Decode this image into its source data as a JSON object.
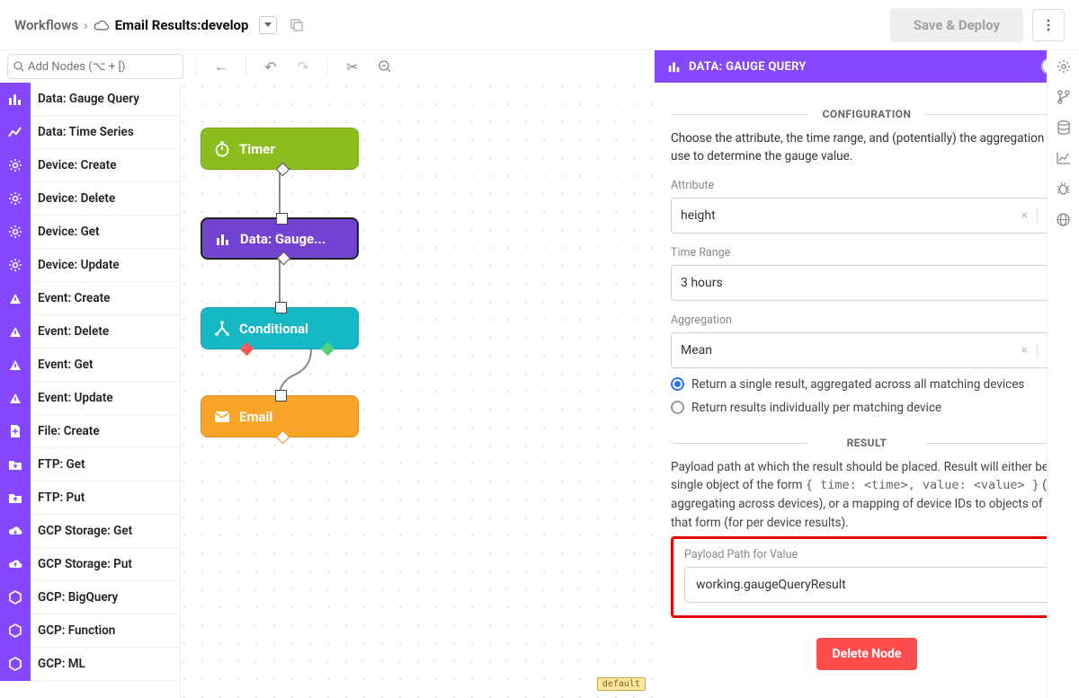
{
  "header": {
    "breadcrumb_root": "Workflows",
    "cloud_label": "Email Results:",
    "branch": "develop",
    "save_deploy": "Save & Deploy"
  },
  "toolbar": {
    "add_nodes_placeholder": "Add Nodes (⌥ + [)"
  },
  "palette": {
    "items": [
      {
        "label": "Data: Gauge Query",
        "icon": "bars"
      },
      {
        "label": "Data: Time Series",
        "icon": "line"
      },
      {
        "label": "Device: Create",
        "icon": "gear"
      },
      {
        "label": "Device: Delete",
        "icon": "gear"
      },
      {
        "label": "Device: Get",
        "icon": "gear"
      },
      {
        "label": "Device: Update",
        "icon": "gear"
      },
      {
        "label": "Event: Create",
        "icon": "peak"
      },
      {
        "label": "Event: Delete",
        "icon": "peak"
      },
      {
        "label": "Event: Get",
        "icon": "peak"
      },
      {
        "label": "Event: Update",
        "icon": "peak"
      },
      {
        "label": "File: Create",
        "icon": "file"
      },
      {
        "label": "FTP: Get",
        "icon": "folder-down"
      },
      {
        "label": "FTP: Put",
        "icon": "folder-up"
      },
      {
        "label": "GCP Storage: Get",
        "icon": "cloud-down"
      },
      {
        "label": "GCP Storage: Put",
        "icon": "cloud-up"
      },
      {
        "label": "GCP: BigQuery",
        "icon": "hex"
      },
      {
        "label": "GCP: Function",
        "icon": "hex"
      },
      {
        "label": "GCP: ML",
        "icon": "hex"
      }
    ]
  },
  "nodes": {
    "timer": "Timer",
    "gauge": "Data: Gauge...",
    "conditional": "Conditional",
    "email": "Email"
  },
  "canvas": {
    "default_badge": "default"
  },
  "panel": {
    "title": "DATA: GAUGE QUERY",
    "sections": {
      "config": "CONFIGURATION",
      "result": "RESULT"
    },
    "config_desc": "Choose the attribute, the time range, and (potentially) the aggregation to use to determine the gauge value.",
    "labels": {
      "attribute": "Attribute",
      "time_range": "Time Range",
      "aggregation": "Aggregation",
      "payload_path": "Payload Path for Value"
    },
    "values": {
      "attribute": "height",
      "time_range": "3 hours",
      "aggregation": "Mean",
      "payload_path": "working.gaugeQueryResult"
    },
    "radios": {
      "single": "Return a single result, aggregated across all matching devices",
      "per_device": "Return results individually per matching device"
    },
    "result_desc_before": "Payload path at which the result should be placed. Result will either be a single object of the form ",
    "result_desc_code": "{ time: <time>, value: <value> }",
    "result_desc_after": " (for aggregating across devices), or a mapping of device IDs to objects of that form (for per device results).",
    "delete": "Delete Node"
  },
  "colors": {
    "accent": "#8548FF",
    "timer_node": "#8bbd1f",
    "gauge_node": "#7243D0",
    "cond_node": "#17b8c6",
    "email_node": "#f8a427",
    "highlight": "#e50000",
    "danger": "#ff4d4d"
  }
}
